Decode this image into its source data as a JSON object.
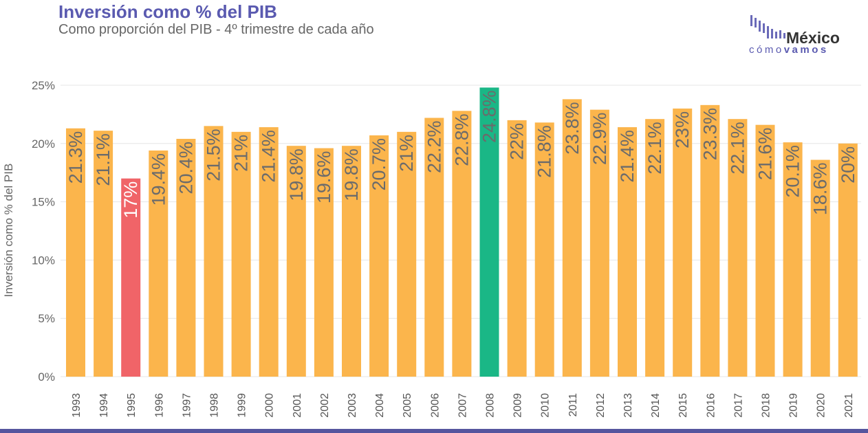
{
  "header": {
    "title": "Inversión como % del PIB",
    "subtitle": "Como proporción del PIB - 4º trimestre de cada año"
  },
  "logo": {
    "brand_main": "México",
    "brand_sub_light": "cómo",
    "brand_sub_bold": "vamos"
  },
  "colors": {
    "default_bar": "#fbb54c",
    "min_bar": "#f06468",
    "max_bar": "#1ab786",
    "label_dark": "#6b6b6b",
    "label_light": "#ffffff",
    "grid": "#e6e6e6",
    "accent": "#5a5ab0"
  },
  "chart_data": {
    "type": "bar",
    "title": "Inversión como % del PIB",
    "subtitle": "Como proporción del PIB - 4º trimestre de cada año",
    "xlabel": "",
    "ylabel": "Inversión como % del PIB",
    "ylim": [
      0,
      25
    ],
    "y_ticks": [
      "0%",
      "5%",
      "10%",
      "15%",
      "20%",
      "25%"
    ],
    "y_tick_values": [
      0,
      5,
      10,
      15,
      20,
      25
    ],
    "grid": true,
    "categories": [
      "1993",
      "1994",
      "1995",
      "1996",
      "1997",
      "1998",
      "1999",
      "2000",
      "2001",
      "2002",
      "2003",
      "2004",
      "2005",
      "2006",
      "2007",
      "2008",
      "2009",
      "2010",
      "2011",
      "2012",
      "2013",
      "2014",
      "2015",
      "2016",
      "2017",
      "2018",
      "2019",
      "2020",
      "2021"
    ],
    "values": [
      21.3,
      21.1,
      17,
      19.4,
      20.4,
      21.5,
      21,
      21.4,
      19.8,
      19.6,
      19.8,
      20.7,
      21,
      22.2,
      22.8,
      24.8,
      22,
      21.8,
      23.8,
      22.9,
      21.4,
      22.1,
      23,
      23.3,
      22.1,
      21.6,
      20.1,
      18.6,
      20
    ],
    "data_labels": [
      "21.3%",
      "21.1%",
      "17%",
      "19.4%",
      "20.4%",
      "21.5%",
      "21%",
      "21.4%",
      "19.8%",
      "19.6%",
      "19.8%",
      "20.7%",
      "21%",
      "22.2%",
      "22.8%",
      "24.8%",
      "22%",
      "21.8%",
      "23.8%",
      "22.9%",
      "21.4%",
      "22.1%",
      "23%",
      "23.3%",
      "22.1%",
      "21.6%",
      "20.1%",
      "18.6%",
      "20%"
    ],
    "highlight": {
      "min": "1995",
      "max": "2008"
    }
  }
}
